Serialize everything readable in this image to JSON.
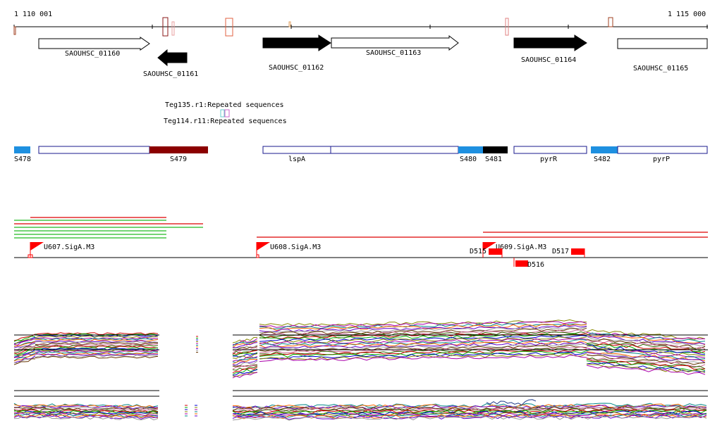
{
  "ruler": {
    "start_label": "1 110 001",
    "end_label": "1 115 000"
  },
  "genes": [
    {
      "name": "SAOUHSC_01160",
      "strand": "+",
      "filled": false
    },
    {
      "name": "SAOUHSC_01161",
      "strand": "-",
      "filled": true
    },
    {
      "name": "SAOUHSC_01162",
      "strand": "+",
      "filled": true
    },
    {
      "name": "SAOUHSC_01163",
      "strand": "+",
      "filled": false
    },
    {
      "name": "SAOUHSC_01164",
      "strand": "+",
      "filled": true
    },
    {
      "name": "SAOUHSC_01165",
      "strand": "+",
      "filled": false
    }
  ],
  "repeats": [
    {
      "label": "Teg135.r1:Repeated sequences",
      "color": "#66cccc"
    },
    {
      "label": "Teg114.r11:Repeated sequences",
      "color": "#cc66cc"
    }
  ],
  "segments": {
    "labels": [
      "S478",
      "S479",
      "lspA",
      "S480",
      "S481",
      "pyrR",
      "S482",
      "pyrP"
    ],
    "colors": {
      "blue": "#1e90e0",
      "darkred": "#8b0000",
      "black": "#000000",
      "outline": "#1a1a8c"
    }
  },
  "promoters": [
    "U607.SigA.M3",
    "U608.SigA.M3",
    "U609.SigA.M3"
  ],
  "terminators": [
    "D515",
    "D516",
    "D517"
  ],
  "colors": {
    "gene_fill": "#000000",
    "gene_outline": "#000000",
    "feature_red": "#ff0000",
    "read_green": "#22bb22",
    "read_red": "#dd0000",
    "marker_brown": "#a04020"
  },
  "profile_palette": [
    "#cc0000",
    "#00aa00",
    "#0000cc",
    "#888800",
    "#aa00aa",
    "#008888",
    "#ff6600",
    "#6600cc",
    "#999999",
    "#663300",
    "#cc6699",
    "#336600"
  ]
}
